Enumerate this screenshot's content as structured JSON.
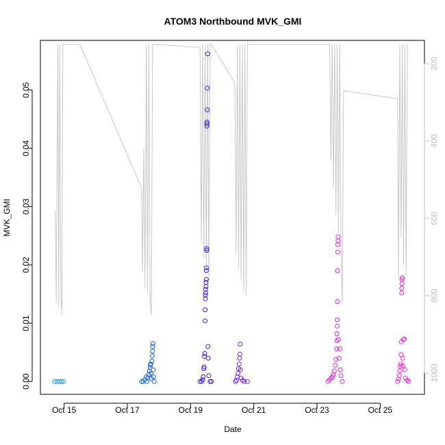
{
  "chart_data": {
    "type": "scatter",
    "title": "ATOM3 Northbound MVK_GMI",
    "xlabel": "Date",
    "ylabel": "MVK_GMI",
    "x_ticks": [
      "Oct 15",
      "Oct 17",
      "Oct 19",
      "Oct 21",
      "Oct 23",
      "Oct 25"
    ],
    "y_ticks": [
      "0.00",
      "0.01",
      "0.02",
      "0.03",
      "0.04",
      "0.05"
    ],
    "y2_ticks": [
      "200",
      "400",
      "600",
      "800",
      "1000"
    ],
    "y2_reversed": true,
    "grid": false,
    "axis_colors": {
      "primary": "#000000",
      "secondary": "#bfbfbf"
    },
    "series": [
      {
        "kind": "points",
        "color": "#1e9be8",
        "points": [
          [
            14.7,
            0
          ],
          [
            14.78,
            0
          ],
          [
            14.85,
            0
          ],
          [
            14.92,
            0
          ],
          [
            14.98,
            0
          ]
        ]
      },
      {
        "kind": "points",
        "color": "#1a5fe0",
        "points": [
          [
            17.45,
            0
          ],
          [
            17.5,
            0
          ],
          [
            17.55,
            0.0003
          ],
          [
            17.6,
            0.0008
          ],
          [
            17.62,
            0
          ],
          [
            17.65,
            0.0006
          ],
          [
            17.68,
            0.0012
          ],
          [
            17.7,
            0.0018
          ],
          [
            17.72,
            0.0024
          ],
          [
            17.73,
            0.0028
          ],
          [
            17.74,
            0.003
          ],
          [
            17.75,
            0.0014
          ],
          [
            17.76,
            0.0005
          ],
          [
            17.78,
            0.0035
          ],
          [
            17.79,
            0.0044
          ],
          [
            17.8,
            0.0052
          ],
          [
            17.8,
            0.006
          ],
          [
            17.81,
            0.0065
          ],
          [
            17.82,
            0.002
          ],
          [
            17.83,
            0.0008
          ],
          [
            17.85,
            0
          ]
        ]
      },
      {
        "kind": "points",
        "color": "#3a18e0",
        "points": [
          [
            19.3,
            0
          ],
          [
            19.35,
            0
          ],
          [
            19.38,
            0.0003
          ],
          [
            19.4,
            0.0008
          ],
          [
            19.42,
            0.0022
          ],
          [
            19.43,
            0.0025
          ],
          [
            19.44,
            0.0043
          ],
          [
            19.45,
            0.0048
          ],
          [
            19.46,
            0.0104
          ],
          [
            19.46,
            0.0123
          ],
          [
            19.47,
            0.0142
          ],
          [
            19.47,
            0.0148
          ],
          [
            19.48,
            0.0152
          ],
          [
            19.48,
            0.0158
          ],
          [
            19.49,
            0.0163
          ],
          [
            19.49,
            0.017
          ],
          [
            19.5,
            0.0175
          ],
          [
            19.5,
            0.019
          ],
          [
            19.5,
            0.0195
          ],
          [
            19.51,
            0.0225
          ],
          [
            19.51,
            0.0228
          ],
          [
            19.52,
            0.0438
          ],
          [
            19.52,
            0.0442
          ],
          [
            19.52,
            0.0445
          ],
          [
            19.53,
            0.0466
          ],
          [
            19.53,
            0.0503
          ],
          [
            19.54,
            0.0562
          ],
          [
            19.55,
            0.006
          ],
          [
            19.56,
            0.004
          ],
          [
            19.58,
            0.001
          ],
          [
            19.62,
            0
          ],
          [
            19.66,
            0
          ]
        ]
      },
      {
        "kind": "points",
        "color": "#7020e0",
        "points": [
          [
            20.42,
            0
          ],
          [
            20.45,
            0.0002
          ],
          [
            20.48,
            0.0008
          ],
          [
            20.5,
            0.0014
          ],
          [
            20.52,
            0.0022
          ],
          [
            20.54,
            0.003
          ],
          [
            20.55,
            0.004
          ],
          [
            20.56,
            0.0047
          ],
          [
            20.57,
            0.0064
          ],
          [
            20.58,
            0.002
          ],
          [
            20.6,
            0.0006
          ],
          [
            20.65,
            0.0002
          ],
          [
            20.7,
            0
          ],
          [
            20.8,
            0
          ]
        ]
      },
      {
        "kind": "points",
        "color": "#e024e0",
        "points": [
          [
            23.35,
            0
          ],
          [
            23.4,
            0.0003
          ],
          [
            23.45,
            0.0006
          ],
          [
            23.5,
            0.0008
          ],
          [
            23.52,
            0.0012
          ],
          [
            23.55,
            0.0018
          ],
          [
            23.58,
            0.0028
          ],
          [
            23.6,
            0.0038
          ],
          [
            23.62,
            0.0056
          ],
          [
            23.63,
            0.007
          ],
          [
            23.63,
            0.0082
          ],
          [
            23.64,
            0.0095
          ],
          [
            23.64,
            0.0106
          ],
          [
            23.65,
            0.0137
          ],
          [
            23.65,
            0.019
          ],
          [
            23.66,
            0.0222
          ],
          [
            23.66,
            0.0235
          ],
          [
            23.67,
            0.0241
          ],
          [
            23.67,
            0.0248
          ],
          [
            23.68,
            0.0072
          ],
          [
            23.7,
            0.004
          ],
          [
            23.72,
            0.0056
          ],
          [
            23.74,
            0.002
          ],
          [
            23.76,
            0.001
          ],
          [
            23.8,
            0
          ]
        ]
      },
      {
        "kind": "points",
        "color": "#f020d8",
        "points": [
          [
            25.55,
            0
          ],
          [
            25.58,
            0.0004
          ],
          [
            25.6,
            0.001
          ],
          [
            25.62,
            0.0018
          ],
          [
            25.64,
            0.0026
          ],
          [
            25.65,
            0.003
          ],
          [
            25.66,
            0.0046
          ],
          [
            25.67,
            0.0068
          ],
          [
            25.68,
            0.0152
          ],
          [
            25.68,
            0.016
          ],
          [
            25.69,
            0.0168
          ],
          [
            25.69,
            0.0175
          ],
          [
            25.7,
            0.0178
          ],
          [
            25.71,
            0.004
          ],
          [
            25.72,
            0.0027
          ],
          [
            25.74,
            0.0072
          ],
          [
            25.76,
            0.0073
          ],
          [
            25.78,
            0.002
          ],
          [
            25.8,
            0.0006
          ],
          [
            25.85,
            0.0002
          ],
          [
            25.9,
            0
          ]
        ]
      }
    ],
    "altitude_trace": {
      "kind": "line",
      "color": "#c8c8c8",
      "axis": "y2",
      "points": [
        [
          14.72,
          580
        ],
        [
          14.75,
          820
        ],
        [
          14.8,
          150
        ],
        [
          14.83,
          830
        ],
        [
          14.86,
          150
        ],
        [
          14.9,
          800
        ],
        [
          14.93,
          850
        ],
        [
          14.96,
          150
        ],
        [
          15.5,
          150
        ],
        [
          17.45,
          522
        ],
        [
          17.48,
          740
        ],
        [
          17.52,
          420
        ],
        [
          17.56,
          780
        ],
        [
          17.6,
          150
        ],
        [
          17.64,
          790
        ],
        [
          17.68,
          150
        ],
        [
          17.72,
          810
        ],
        [
          17.76,
          850
        ],
        [
          17.8,
          150
        ],
        [
          17.85,
          150
        ],
        [
          19.3,
          158
        ],
        [
          19.34,
          660
        ],
        [
          19.38,
          150
        ],
        [
          19.42,
          700
        ],
        [
          19.46,
          150
        ],
        [
          19.5,
          730
        ],
        [
          19.54,
          150
        ],
        [
          19.58,
          760
        ],
        [
          19.62,
          150
        ],
        [
          19.66,
          150
        ],
        [
          20.4,
          250
        ],
        [
          20.44,
          690
        ],
        [
          20.48,
          150
        ],
        [
          20.52,
          730
        ],
        [
          20.56,
          150
        ],
        [
          20.6,
          760
        ],
        [
          20.64,
          150
        ],
        [
          20.68,
          790
        ],
        [
          20.72,
          150
        ],
        [
          20.76,
          800
        ],
        [
          20.8,
          150
        ],
        [
          23.4,
          150
        ],
        [
          23.44,
          450
        ],
        [
          23.48,
          150
        ],
        [
          23.52,
          520
        ],
        [
          23.56,
          150
        ],
        [
          23.6,
          590
        ],
        [
          23.64,
          150
        ],
        [
          23.68,
          640
        ],
        [
          23.72,
          150
        ],
        [
          23.76,
          680
        ],
        [
          23.8,
          820
        ],
        [
          23.84,
          270
        ],
        [
          25.5,
          290
        ],
        [
          25.55,
          290
        ],
        [
          25.58,
          760
        ],
        [
          25.62,
          150
        ],
        [
          25.66,
          650
        ],
        [
          25.7,
          150
        ],
        [
          25.74,
          720
        ],
        [
          25.78,
          150
        ],
        [
          25.82,
          750
        ],
        [
          25.86,
          150
        ],
        [
          25.88,
          150
        ]
      ]
    },
    "xlim": [
      14.25,
      26.4
    ],
    "ylim": [
      -0.0022,
      0.0585
    ],
    "y2lim": [
      1055,
      140
    ]
  }
}
